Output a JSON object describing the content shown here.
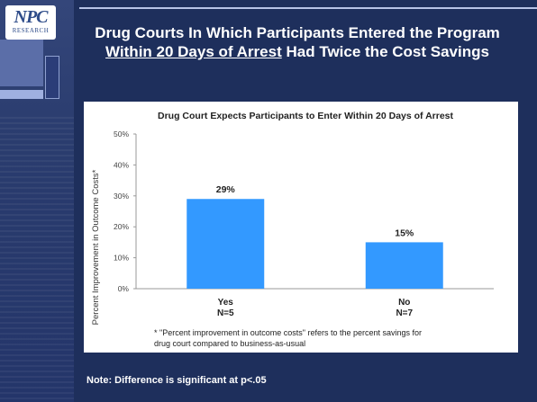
{
  "logo": {
    "mark": "NPC",
    "sub": "RESEARCH"
  },
  "title": {
    "part1": "Drug Courts In Which Participants Entered the Program",
    "underlined": "Within 20 Days of Arrest",
    "part2": "Had Twice the Cost Savings"
  },
  "chart_data": {
    "type": "bar",
    "title": "Drug Court Expects Participants to Enter Within 20 Days of Arrest",
    "ylabel": "Percent Improvement in Outcome Costs*",
    "ylim": [
      0,
      50
    ],
    "yticks": [
      "0%",
      "10%",
      "20%",
      "30%",
      "40%",
      "50%"
    ],
    "yticks_values": [
      0,
      10,
      20,
      30,
      40,
      50
    ],
    "categories": [
      "Yes",
      "No"
    ],
    "category_n": [
      "N=5",
      "N=7"
    ],
    "values": [
      29,
      15
    ],
    "value_labels": [
      "29%",
      "15%"
    ],
    "bar_color": "#3399ff",
    "grid": false,
    "footnote_line1": "* \"Percent improvement in outcome costs\" refers to the percent savings for",
    "footnote_line2": "drug court compared to business-as-usual"
  },
  "note": "Note: Difference is significant at p<.05"
}
